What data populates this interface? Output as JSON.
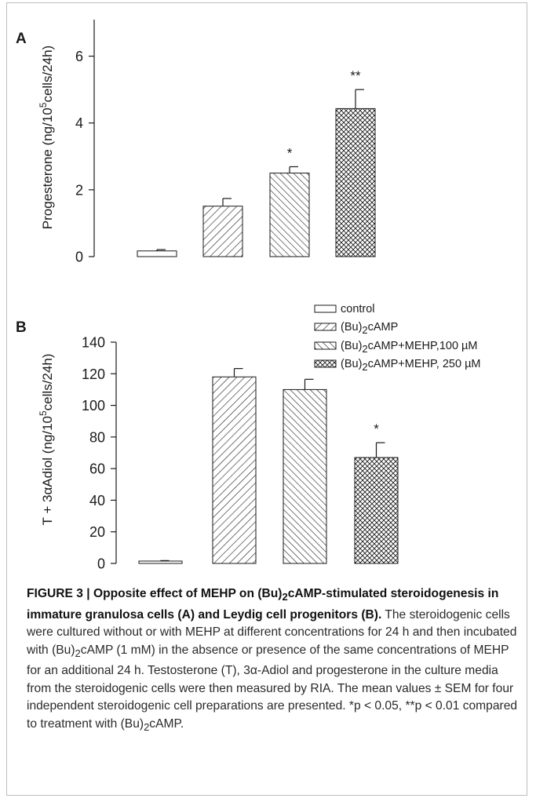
{
  "colors": {
    "ink": "#1a1a1a",
    "frame": "#bdbdbd",
    "background": "#ffffff"
  },
  "chart_data": [
    {
      "panel_label": "A",
      "type": "bar",
      "ylabel_prefix": "Progesterone (ng/10",
      "ylabel_sup": "5",
      "ylabel_suffix": "cells/24h)",
      "ylim": [
        0,
        7
      ],
      "yticks": [
        0,
        2,
        4,
        6
      ],
      "grid": false,
      "categories": [
        "control",
        "(Bu)2cAMP",
        "(Bu)2cAMP+MEHP,100 µM",
        "(Bu)2cAMP+MEHP, 250 µM"
      ],
      "values": [
        0.17,
        1.51,
        2.5,
        4.43
      ],
      "errors": [
        0.04,
        0.23,
        0.19,
        0.57
      ],
      "significance": [
        "",
        "",
        "*",
        "**"
      ],
      "fills": [
        "none",
        "hatch-right",
        "hatch-left",
        "crosshatch"
      ]
    },
    {
      "panel_label": "B",
      "type": "bar",
      "ylabel_prefix": "T + 3αAdiol (ng/10",
      "ylabel_sup": "5",
      "ylabel_suffix": "cells/24h)",
      "ylim": [
        0,
        140
      ],
      "yticks": [
        0,
        20,
        40,
        60,
        80,
        100,
        120,
        140
      ],
      "grid": false,
      "categories": [
        "control",
        "(Bu)2cAMP",
        "(Bu)2cAMP+MEHP,100 µM",
        "(Bu)2cAMP+MEHP, 250 µM"
      ],
      "values": [
        1.5,
        118,
        110,
        67
      ],
      "errors": [
        0.3,
        5.3,
        6.5,
        9.4
      ],
      "significance": [
        "",
        "",
        "",
        "*"
      ],
      "fills": [
        "none",
        "hatch-right",
        "hatch-left",
        "crosshatch"
      ],
      "legend_position": "top-right",
      "legend": [
        {
          "pre": "control",
          "sub": "",
          "post": ""
        },
        {
          "pre": "(Bu)",
          "sub": "2",
          "post": "cAMP"
        },
        {
          "pre": "(Bu)",
          "sub": "2",
          "post": "cAMP+MEHP,100 µM"
        },
        {
          "pre": "(Bu)",
          "sub": "2",
          "post": "cAMP+MEHP, 250 µM"
        }
      ]
    }
  ],
  "caption": {
    "title_1": "FIGURE 3 | Opposite effect of MEHP on (Bu)",
    "title_sub": "2",
    "title_2": "cAMP-stimulated steroidogenesis in immature granulosa cells (A) and Leydig cell progenitors (B).",
    "body_1": " The steroidogenic cells were cultured without or with MEHP at different concentrations for 24 h and then incubated with (Bu)",
    "body_sub1": "2",
    "body_2": "cAMP (1 mM) in the absence or presence of the same concentrations of MEHP for an additional 24 h. Testosterone (T), 3α-Adiol and progesterone in the culture media from the steroidogenic cells were then measured by RIA. The mean values ± SEM for four independent steroidogenic cell preparations are presented. *p < 0.05, **p < 0.01 compared to treatment with (Bu)",
    "body_sub2": "2",
    "body_3": "cAMP."
  }
}
